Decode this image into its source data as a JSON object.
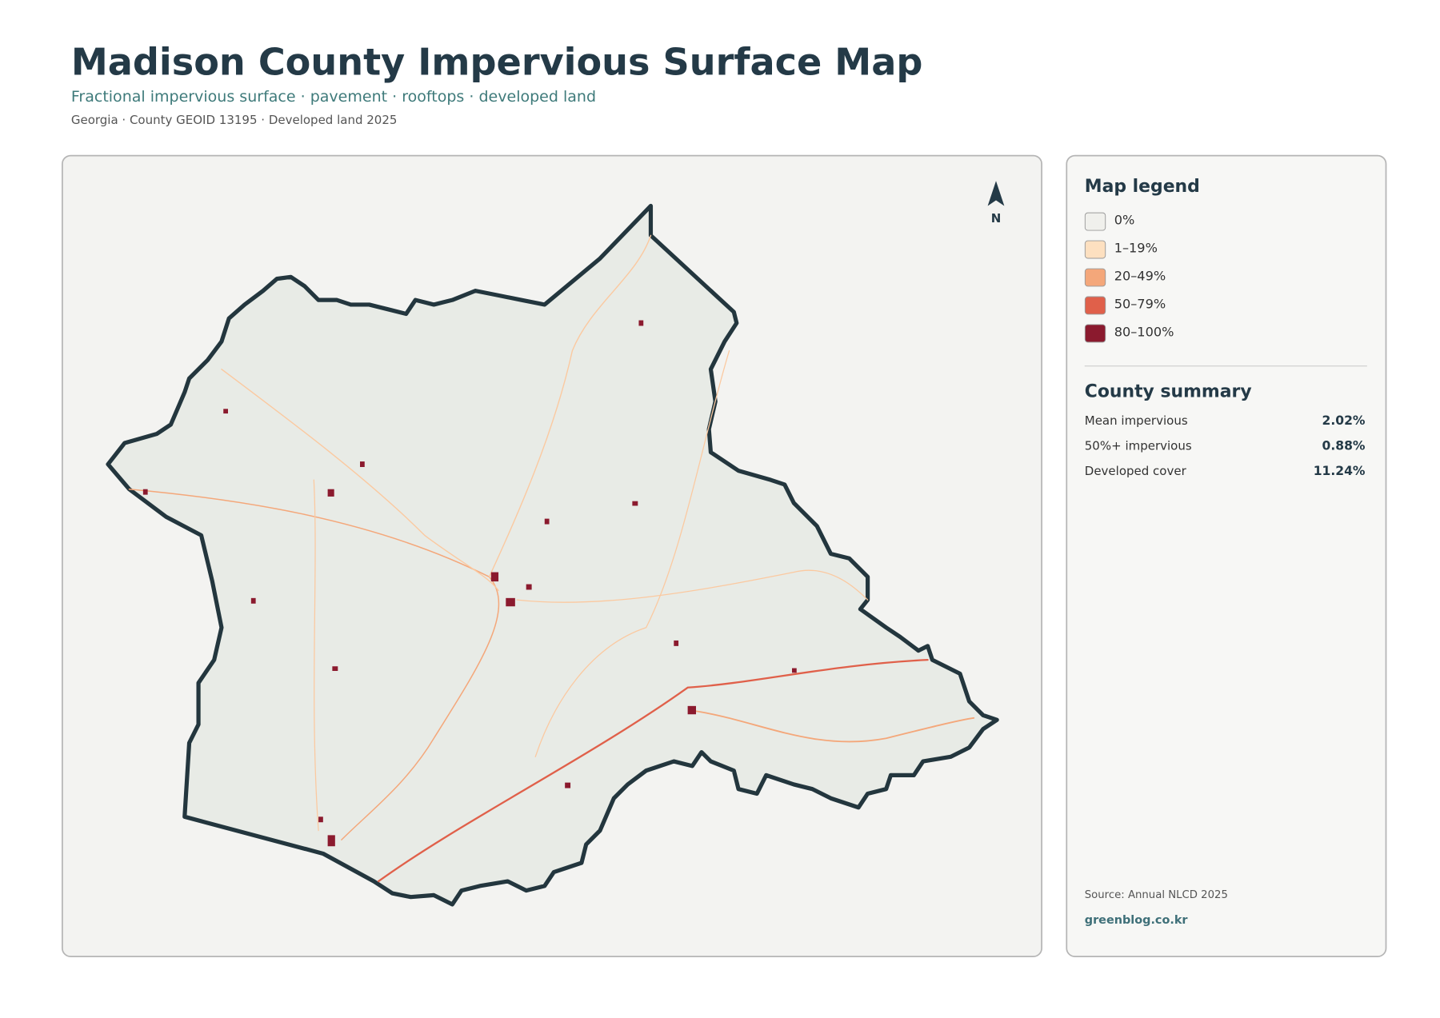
{
  "header": {
    "title": "Madison County Impervious Surface Map",
    "subtitle": "Fractional impervious surface · pavement · rooftops · developed land",
    "meta": "Georgia · County GEOID 13195 · Developed land 2025"
  },
  "map": {
    "north": "N"
  },
  "legend": {
    "title": "Map legend",
    "items": [
      {
        "label": "0%",
        "color": "#f0f0ec"
      },
      {
        "label": "1–19%",
        "color": "#fde0c0"
      },
      {
        "label": "20–49%",
        "color": "#f4a77a"
      },
      {
        "label": "50–79%",
        "color": "#e0604a"
      },
      {
        "label": "80–100%",
        "color": "#8b1a2e"
      }
    ]
  },
  "summary": {
    "title": "County summary",
    "rows": [
      {
        "label": "Mean impervious",
        "value": "2.02%"
      },
      {
        "label": "50%+ impervious",
        "value": "0.88%"
      },
      {
        "label": "Developed cover",
        "value": "11.24%"
      }
    ]
  },
  "footer": {
    "source": "Source: Annual NLCD 2025",
    "site": "greenblog.co.kr"
  }
}
